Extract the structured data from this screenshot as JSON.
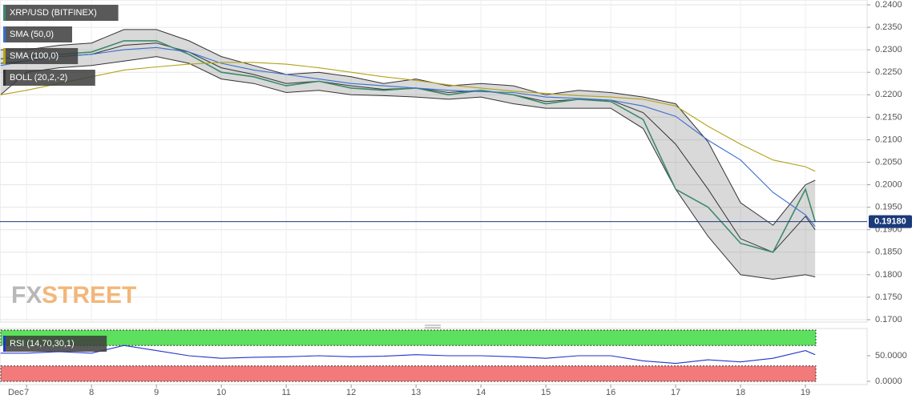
{
  "watermark": {
    "part1": "FX",
    "part2": "STREET"
  },
  "chart_data": [
    {
      "type": "line",
      "x": [
        6.6,
        7,
        7.5,
        8,
        8.5,
        9,
        9.5,
        10,
        10.5,
        11,
        11.5,
        12,
        12.5,
        13,
        13.5,
        14,
        14.5,
        15,
        15.5,
        16,
        16.5,
        17,
        17.5,
        18,
        18.5,
        19,
        19.15
      ],
      "xlim": [
        6.59,
        19.95
      ],
      "xticks": [
        7,
        8,
        9,
        10,
        11,
        12,
        13,
        14,
        15,
        16,
        17,
        18,
        19
      ],
      "x_month_label": "Dec",
      "ylim": [
        0.17,
        0.24
      ],
      "yticks": [
        {
          "value": 0.24,
          "label": "0.2400"
        },
        {
          "value": 0.235,
          "label": "0.2350"
        },
        {
          "value": 0.23,
          "label": "0.2300"
        },
        {
          "value": 0.225,
          "label": "0.2250"
        },
        {
          "value": 0.22,
          "label": "0.2200"
        },
        {
          "value": 0.215,
          "label": "0.2150"
        },
        {
          "value": 0.21,
          "label": "0.2100"
        },
        {
          "value": 0.205,
          "label": "0.2050"
        },
        {
          "value": 0.2,
          "label": "0.2000"
        },
        {
          "value": 0.195,
          "label": "0.1950"
        },
        {
          "value": 0.19,
          "label": "0.1900"
        },
        {
          "value": 0.185,
          "label": "0.1850"
        },
        {
          "value": 0.18,
          "label": "0.1800"
        },
        {
          "value": 0.175,
          "label": "0.1750"
        },
        {
          "value": 0.17,
          "label": "0.1700"
        }
      ],
      "grid": true,
      "current_price": {
        "value": 0.1918,
        "label": "0.19180",
        "color": "#1a3a7a"
      },
      "series": [
        {
          "name": "XRP/USD (BITFINEX)",
          "color": "#3d8a6a",
          "values": [
            0.228,
            0.2285,
            0.229,
            0.2295,
            0.232,
            0.232,
            0.229,
            0.225,
            0.224,
            0.222,
            0.223,
            0.2215,
            0.221,
            0.2215,
            0.22,
            0.221,
            0.22,
            0.218,
            0.219,
            0.2185,
            0.2145,
            0.199,
            0.195,
            0.187,
            0.185,
            0.199,
            0.1918
          ]
        },
        {
          "name": "SMA (50,0)",
          "color": "#3a6fd0",
          "values": [
            0.2265,
            0.2275,
            0.2285,
            0.229,
            0.23,
            0.2305,
            0.2295,
            0.227,
            0.2255,
            0.2245,
            0.2235,
            0.2225,
            0.222,
            0.2215,
            0.221,
            0.2207,
            0.2205,
            0.2195,
            0.2192,
            0.2188,
            0.2175,
            0.2152,
            0.2099,
            0.2055,
            0.1983,
            0.1933,
            0.1907
          ]
        },
        {
          "name": "SMA (100,0)",
          "color": "#b3a21a",
          "values": [
            0.22,
            0.221,
            0.2225,
            0.224,
            0.2255,
            0.2262,
            0.2268,
            0.2272,
            0.2272,
            0.2268,
            0.226,
            0.225,
            0.224,
            0.2232,
            0.2222,
            0.2215,
            0.2208,
            0.2203,
            0.2198,
            0.2195,
            0.219,
            0.2175,
            0.213,
            0.209,
            0.2055,
            0.204,
            0.203
          ]
        }
      ],
      "bands": {
        "name": "BOLL (20,2,-2)",
        "color": "#333333",
        "upper": [
          0.23,
          0.23,
          0.231,
          0.2315,
          0.2345,
          0.2345,
          0.232,
          0.2285,
          0.2265,
          0.2245,
          0.225,
          0.224,
          0.2225,
          0.2235,
          0.222,
          0.2225,
          0.222,
          0.22,
          0.221,
          0.2205,
          0.2195,
          0.218,
          0.2095,
          0.196,
          0.191,
          0.2,
          0.201
        ],
        "middle": [
          0.227,
          0.2275,
          0.2285,
          0.229,
          0.231,
          0.2315,
          0.2295,
          0.226,
          0.2245,
          0.2225,
          0.223,
          0.222,
          0.2212,
          0.2215,
          0.2205,
          0.221,
          0.22,
          0.2185,
          0.219,
          0.2188,
          0.216,
          0.209,
          0.199,
          0.188,
          0.185,
          0.193,
          0.19
        ],
        "lower": [
          0.22,
          0.225,
          0.226,
          0.2265,
          0.2275,
          0.2285,
          0.227,
          0.2235,
          0.2225,
          0.2205,
          0.221,
          0.22,
          0.2198,
          0.2195,
          0.219,
          0.2195,
          0.218,
          0.217,
          0.217,
          0.217,
          0.2125,
          0.199,
          0.1885,
          0.18,
          0.179,
          0.18,
          0.1795
        ]
      }
    },
    {
      "type": "line",
      "x": [
        6.6,
        7,
        7.5,
        8,
        8.5,
        9,
        9.5,
        10,
        10.5,
        11,
        11.5,
        12,
        12.5,
        13,
        13.5,
        14,
        14.5,
        15,
        15.5,
        16,
        16.5,
        17,
        17.5,
        18,
        18.5,
        19,
        19.15
      ],
      "xlim": [
        6.59,
        19.95
      ],
      "ylim": [
        0,
        100
      ],
      "yticks": [
        {
          "value": 50,
          "label": "50.0000"
        },
        {
          "value": 0,
          "label": "0.0000"
        }
      ],
      "overbought": 70,
      "oversold": 30,
      "overbought_color": "#5de05d",
      "oversold_color": "#f27a7a",
      "series": [
        {
          "name": "RSI (14,70,30,1)",
          "color": "#2233cc",
          "values": [
            55,
            55,
            58,
            55,
            70,
            60,
            50,
            45,
            47,
            48,
            50,
            48,
            49,
            52,
            50,
            50,
            48,
            45,
            50,
            50,
            40,
            35,
            42,
            38,
            45,
            60,
            52
          ]
        }
      ]
    }
  ]
}
